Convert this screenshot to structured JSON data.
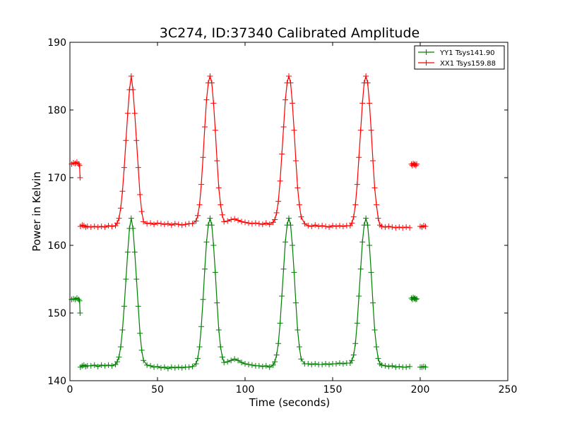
{
  "chart_data": {
    "type": "line",
    "title": "3C274, ID:37340 Calibrated Amplitude",
    "xlabel": "Time (seconds)",
    "ylabel": "Power in Kelvin",
    "xlim": [
      0,
      250
    ],
    "ylim": [
      140,
      190
    ],
    "xticks": [
      0,
      50,
      100,
      150,
      200,
      250
    ],
    "yticks": [
      140,
      150,
      160,
      170,
      180,
      190
    ],
    "grid": false,
    "legend_position": "top-right",
    "marker": "+",
    "series": [
      {
        "name": "YY1 Tsys141.90",
        "color": "#008000",
        "segments": [
          {
            "x": [
              1,
              2,
              3,
              4,
              5,
              5.5,
              5.8
            ],
            "y": [
              152.0,
              152.1,
              152.0,
              152.2,
              152.0,
              151.8,
              150.0
            ]
          },
          {
            "x": [
              6,
              7,
              8,
              9,
              10,
              12,
              14,
              16,
              18,
              20,
              22,
              24,
              26,
              27,
              28,
              29,
              30,
              31,
              32,
              33,
              34,
              35,
              36,
              37,
              38,
              39,
              40,
              41,
              42,
              44,
              46,
              48,
              50,
              52,
              54,
              56,
              58,
              60,
              62,
              64,
              66,
              68,
              70,
              72,
              73,
              74,
              75,
              76,
              77,
              78,
              79,
              80,
              81,
              82,
              83,
              84,
              85,
              86,
              87,
              88,
              90,
              92,
              94,
              96,
              98,
              100,
              102,
              104,
              106,
              108,
              110,
              112,
              114,
              116,
              117,
              118,
              119,
              120,
              121,
              122,
              123,
              124,
              125,
              126,
              127,
              128,
              129,
              130,
              131,
              132,
              134,
              136,
              138,
              140,
              142,
              144,
              146,
              148,
              150,
              152,
              154,
              156,
              158,
              160,
              161,
              162,
              163,
              164,
              165,
              166,
              167,
              168,
              169,
              170,
              171,
              172,
              173,
              174,
              175,
              176,
              177,
              178,
              180,
              182,
              184,
              186,
              188,
              190,
              192,
              194
            ],
            "y": [
              142.0,
              142.2,
              142.3,
              142.1,
              142.2,
              142.2,
              142.3,
              142.1,
              142.3,
              142.2,
              142.3,
              142.2,
              142.4,
              142.8,
              143.5,
              145.0,
              147.5,
              151.0,
              155.0,
              159.0,
              162.5,
              164.0,
              162.5,
              159.0,
              155.0,
              151.0,
              147.0,
              144.5,
              143.0,
              142.3,
              142.2,
              142.0,
              142.1,
              141.9,
              142.0,
              141.8,
              142.0,
              141.9,
              142.0,
              141.9,
              142.0,
              142.0,
              142.1,
              142.5,
              143.3,
              145.0,
              148.0,
              152.0,
              156.5,
              160.5,
              163.0,
              164.0,
              163.0,
              160.0,
              156.0,
              151.5,
              147.5,
              145.0,
              143.5,
              142.7,
              142.8,
              143.0,
              143.2,
              143.0,
              142.7,
              142.5,
              142.4,
              142.3,
              142.2,
              142.2,
              142.1,
              142.2,
              142.0,
              142.3,
              142.8,
              143.8,
              145.5,
              148.5,
              152.5,
              156.5,
              160.5,
              163.0,
              164.0,
              163.0,
              160.0,
              156.0,
              151.5,
              147.5,
              145.0,
              143.2,
              142.5,
              142.5,
              142.4,
              142.5,
              142.4,
              142.4,
              142.5,
              142.4,
              142.5,
              142.5,
              142.6,
              142.5,
              142.6,
              142.6,
              143.0,
              143.8,
              145.5,
              148.5,
              152.5,
              156.5,
              160.5,
              163.0,
              164.0,
              163.0,
              160.0,
              156.0,
              151.5,
              147.5,
              145.0,
              143.3,
              142.5,
              142.3,
              142.2,
              142.1,
              142.2,
              142.0,
              142.1,
              142.0,
              142.0,
              142.1
            ]
          },
          {
            "x": [
              195,
              195.5,
              196,
              196.5,
              197,
              197.5,
              198
            ],
            "y": [
              152.2,
              152.0,
              152.3,
              152.1,
              152.2,
              152.0,
              152.1
            ]
          },
          {
            "x": [
              200,
              201,
              202,
              203
            ],
            "y": [
              142.0,
              142.0,
              142.1,
              142.0
            ]
          }
        ]
      },
      {
        "name": "XX1 Tsys159.88",
        "color": "#ff0000",
        "segments": [
          {
            "x": [
              1,
              2,
              3,
              4,
              5,
              5.5,
              5.8
            ],
            "y": [
              172.0,
              172.2,
              172.1,
              172.3,
              172.0,
              171.8,
              170.0
            ]
          },
          {
            "x": [
              6,
              7,
              8,
              9,
              10,
              12,
              14,
              16,
              18,
              20,
              22,
              24,
              26,
              27,
              28,
              29,
              30,
              31,
              32,
              33,
              34,
              35,
              36,
              37,
              38,
              39,
              40,
              41,
              42,
              44,
              46,
              48,
              50,
              52,
              54,
              56,
              58,
              60,
              62,
              64,
              66,
              68,
              70,
              72,
              73,
              74,
              75,
              76,
              77,
              78,
              79,
              80,
              81,
              82,
              83,
              84,
              85,
              86,
              87,
              88,
              90,
              92,
              94,
              96,
              98,
              100,
              102,
              104,
              106,
              108,
              110,
              112,
              114,
              116,
              117,
              118,
              119,
              120,
              121,
              122,
              123,
              124,
              125,
              126,
              127,
              128,
              129,
              130,
              131,
              132,
              134,
              136,
              138,
              140,
              142,
              144,
              146,
              148,
              150,
              152,
              154,
              156,
              158,
              160,
              161,
              162,
              163,
              164,
              165,
              166,
              167,
              168,
              169,
              170,
              171,
              172,
              173,
              174,
              175,
              176,
              177,
              178,
              180,
              182,
              184,
              186,
              188,
              190,
              192,
              194
            ],
            "y": [
              162.8,
              163.0,
              162.9,
              162.7,
              162.8,
              162.7,
              162.8,
              162.7,
              162.8,
              162.7,
              162.9,
              162.8,
              162.9,
              163.3,
              164.0,
              165.5,
              168.0,
              171.5,
              175.5,
              179.5,
              183.0,
              185.0,
              183.0,
              179.5,
              175.5,
              171.5,
              167.5,
              165.0,
              163.5,
              163.2,
              163.3,
              163.1,
              163.3,
              163.2,
              163.1,
              163.2,
              163.0,
              163.2,
              163.1,
              163.0,
              163.1,
              163.2,
              163.2,
              163.6,
              164.4,
              166.0,
              169.0,
              173.0,
              177.5,
              181.5,
              184.0,
              185.0,
              184.0,
              181.0,
              177.0,
              172.5,
              168.5,
              166.0,
              164.5,
              163.5,
              163.6,
              163.8,
              163.9,
              163.7,
              163.5,
              163.4,
              163.3,
              163.2,
              163.3,
              163.2,
              163.1,
              163.3,
              163.1,
              163.4,
              163.8,
              164.8,
              166.5,
              169.5,
              173.5,
              177.5,
              181.5,
              184.0,
              185.0,
              184.0,
              181.0,
              177.0,
              172.5,
              168.5,
              166.0,
              164.2,
              163.2,
              162.9,
              162.8,
              163.0,
              162.8,
              162.9,
              162.8,
              162.7,
              162.9,
              162.8,
              162.9,
              162.8,
              162.9,
              162.9,
              163.3,
              164.2,
              166.0,
              169.0,
              173.0,
              177.0,
              181.0,
              184.0,
              185.0,
              184.0,
              181.0,
              177.0,
              172.5,
              168.5,
              166.0,
              164.0,
              163.0,
              162.8,
              162.7,
              162.8,
              162.7,
              162.6,
              162.7,
              162.6,
              162.7,
              162.6
            ]
          },
          {
            "x": [
              195,
              195.5,
              196,
              196.5,
              197,
              197.5,
              198
            ],
            "y": [
              172.0,
              171.8,
              172.1,
              171.9,
              172.0,
              171.8,
              172.0
            ]
          },
          {
            "x": [
              200,
              201,
              202,
              203
            ],
            "y": [
              162.8,
              162.7,
              162.9,
              162.8
            ]
          }
        ]
      }
    ]
  }
}
